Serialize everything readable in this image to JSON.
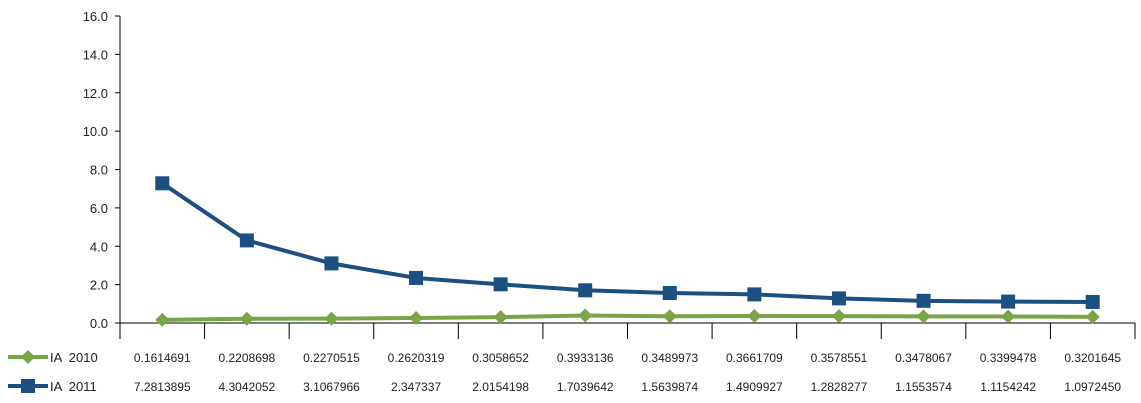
{
  "chart_data": {
    "type": "line",
    "title": "",
    "xlabel": "",
    "ylabel": "",
    "ylim": [
      0,
      16
    ],
    "yticks": [
      "0.0",
      "2.0",
      "4.0",
      "6.0",
      "8.0",
      "10.0",
      "12.0",
      "14.0",
      "16.0"
    ],
    "grid": false,
    "legend": "data-table-left",
    "series": [
      {
        "name": "IA  2010",
        "color": "#78a646",
        "marker": "diamond",
        "values": [
          0.1614691,
          0.2208698,
          0.2270515,
          0.2620319,
          0.3058652,
          0.3933136,
          0.3489973,
          0.3661709,
          0.3578551,
          0.3478067,
          0.3399478,
          0.3201645
        ],
        "labels": [
          "0.1614691",
          "0.2208698",
          "0.2270515",
          "0.2620319",
          "0.3058652",
          "0.3933136",
          "0.3489973",
          "0.3661709",
          "0.3578551",
          "0.3478067",
          "0.3399478",
          "0.3201645"
        ]
      },
      {
        "name": "IA  2011",
        "color": "#1c4f82",
        "marker": "square",
        "values": [
          7.2813895,
          4.3042052,
          3.1067966,
          2.347337,
          2.0154198,
          1.7039642,
          1.5639874,
          1.4909927,
          1.2828277,
          1.1553574,
          1.1154242,
          1.097245
        ],
        "labels": [
          "7.2813895",
          "4.3042052",
          "3.1067966",
          "2.347337",
          "2.0154198",
          "1.7039642",
          "1.5639874",
          "1.4909927",
          "1.2828277",
          "1.1553574",
          "1.1154242",
          "1.0972450"
        ]
      }
    ]
  }
}
